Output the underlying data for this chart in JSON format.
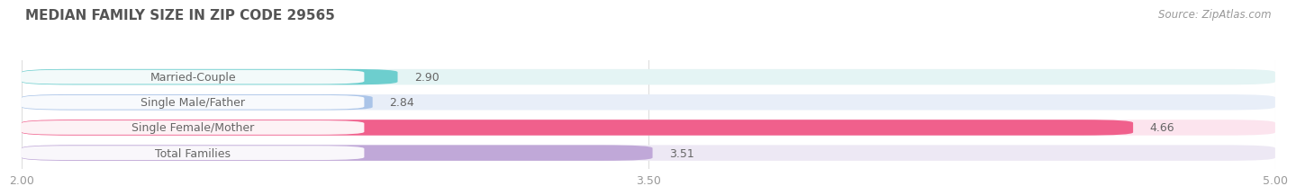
{
  "title": "MEDIAN FAMILY SIZE IN ZIP CODE 29565",
  "source": "Source: ZipAtlas.com",
  "categories": [
    "Married-Couple",
    "Single Male/Father",
    "Single Female/Mother",
    "Total Families"
  ],
  "values": [
    2.9,
    2.84,
    4.66,
    3.51
  ],
  "bar_colors": [
    "#6dcece",
    "#aac4e8",
    "#f0608c",
    "#c0a8d8"
  ],
  "bar_bg_colors": [
    "#e4f4f4",
    "#e8eef8",
    "#fce4ee",
    "#ede8f4"
  ],
  "xlim": [
    2.0,
    5.0
  ],
  "xticks": [
    2.0,
    3.5,
    5.0
  ],
  "xlabel_fontsize": 9,
  "title_fontsize": 11,
  "bar_height": 0.62,
  "label_fontsize": 9,
  "value_fontsize": 9,
  "background_color": "#ffffff",
  "source_fontsize": 8.5,
  "text_color": "#666666",
  "grid_color": "#dddddd",
  "source_color": "#999999"
}
